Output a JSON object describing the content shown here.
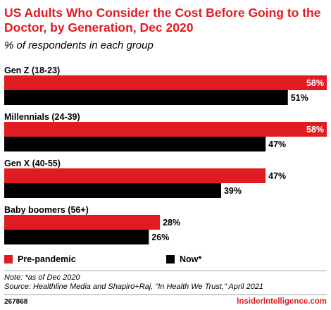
{
  "title": "US Adults Who Consider the Cost Before Going to the Doctor, by Generation, Dec 2020",
  "subtitle": "% of respondents in each group",
  "colors": {
    "pre_pandemic": "#e11b22",
    "now": "#000000",
    "title": "#e11b22"
  },
  "chart_data": {
    "type": "bar",
    "orientation": "horizontal",
    "categories": [
      "Gen Z (18-23)",
      "Millennials (24-39)",
      "Gen X (40-55)",
      "Baby boomers (56+)"
    ],
    "series": [
      {
        "name": "Pre-pandemic",
        "values": [
          58,
          58,
          47,
          28
        ],
        "labels": [
          "58%",
          "58%",
          "47%",
          "28%"
        ]
      },
      {
        "name": "Now*",
        "values": [
          51,
          47,
          39,
          26
        ],
        "labels": [
          "51%",
          "47%",
          "39%",
          "26%"
        ]
      }
    ],
    "xlim": [
      0,
      58
    ],
    "value_suffix": "%",
    "legend_position": "bottom"
  },
  "legend": {
    "pre_pandemic": "Pre-pandemic",
    "now": "Now*"
  },
  "note": "Note: *as of Dec 2020",
  "source": "Source: Healthline Media and Shapiro+Raj, \"In Health We Trust,\" April 2021",
  "chart_id": "267868",
  "brand": "InsiderIntelligence.com"
}
